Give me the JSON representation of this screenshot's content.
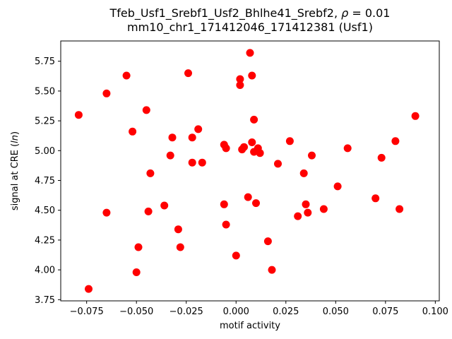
{
  "figure": {
    "background": "#ffffff"
  },
  "chart_data": {
    "type": "scatter",
    "title": "Tfeb_Usf1_Srebf1_Usf2_Bhlhe41_Srebf2, ρ = 0.01",
    "subtitle": "mm10_chr1_171412046_171412381 (Usf1)",
    "title_parts": {
      "prefix": "Tfeb_Usf1_Srebf1_Usf2_Bhlhe41_Srebf2, ",
      "rho": "ρ",
      "suffix": " = 0.01"
    },
    "xlabel": "motif activity",
    "ylabel": "signal at CRE (ln)",
    "ylabel_parts": {
      "prefix": "signal at CRE (",
      "italic": "ln",
      "suffix": ")"
    },
    "xlim": [
      -0.088,
      0.102
    ],
    "ylim": [
      3.74,
      5.92
    ],
    "xticks": [
      -0.075,
      -0.05,
      -0.025,
      0.0,
      0.025,
      0.05,
      0.075,
      0.1
    ],
    "xtick_labels": [
      "−0.075",
      "−0.050",
      "−0.025",
      "0.000",
      "0.025",
      "0.050",
      "0.075",
      "0.100"
    ],
    "yticks": [
      3.75,
      4.0,
      4.25,
      4.5,
      4.75,
      5.0,
      5.25,
      5.5,
      5.75
    ],
    "ytick_labels": [
      "3.75",
      "4.00",
      "4.25",
      "4.50",
      "4.75",
      "5.00",
      "5.25",
      "5.50",
      "5.75"
    ],
    "grid": false,
    "legend_position": "none",
    "marker_color": "#ff0000",
    "marker_radius": 5.5,
    "points": [
      [
        -0.079,
        5.3
      ],
      [
        -0.074,
        3.84
      ],
      [
        -0.065,
        5.48
      ],
      [
        -0.065,
        4.48
      ],
      [
        -0.055,
        5.63
      ],
      [
        -0.052,
        5.16
      ],
      [
        -0.05,
        3.98
      ],
      [
        -0.049,
        4.19
      ],
      [
        -0.045,
        5.34
      ],
      [
        -0.044,
        4.49
      ],
      [
        -0.043,
        4.81
      ],
      [
        -0.036,
        4.54
      ],
      [
        -0.033,
        4.96
      ],
      [
        -0.032,
        5.11
      ],
      [
        -0.029,
        4.34
      ],
      [
        -0.028,
        4.19
      ],
      [
        -0.024,
        5.65
      ],
      [
        -0.022,
        5.11
      ],
      [
        -0.022,
        4.9
      ],
      [
        -0.019,
        5.18
      ],
      [
        -0.017,
        4.9
      ],
      [
        -0.006,
        5.05
      ],
      [
        -0.005,
        5.02
      ],
      [
        -0.006,
        4.55
      ],
      [
        -0.005,
        4.38
      ],
      [
        0.0,
        4.12
      ],
      [
        0.002,
        5.6
      ],
      [
        0.002,
        5.55
      ],
      [
        0.003,
        5.01
      ],
      [
        0.004,
        5.03
      ],
      [
        0.007,
        5.82
      ],
      [
        0.008,
        5.63
      ],
      [
        0.009,
        5.26
      ],
      [
        0.008,
        5.07
      ],
      [
        0.009,
        4.99
      ],
      [
        0.011,
        5.02
      ],
      [
        0.012,
        4.98
      ],
      [
        0.006,
        4.61
      ],
      [
        0.01,
        4.56
      ],
      [
        0.016,
        4.24
      ],
      [
        0.018,
        4.0
      ],
      [
        0.021,
        4.89
      ],
      [
        0.027,
        5.08
      ],
      [
        0.031,
        4.45
      ],
      [
        0.034,
        4.81
      ],
      [
        0.035,
        4.55
      ],
      [
        0.036,
        4.48
      ],
      [
        0.038,
        4.96
      ],
      [
        0.044,
        4.51
      ],
      [
        0.051,
        4.7
      ],
      [
        0.056,
        5.02
      ],
      [
        0.07,
        4.6
      ],
      [
        0.073,
        4.94
      ],
      [
        0.08,
        5.08
      ],
      [
        0.082,
        4.51
      ],
      [
        0.09,
        5.29
      ]
    ]
  }
}
